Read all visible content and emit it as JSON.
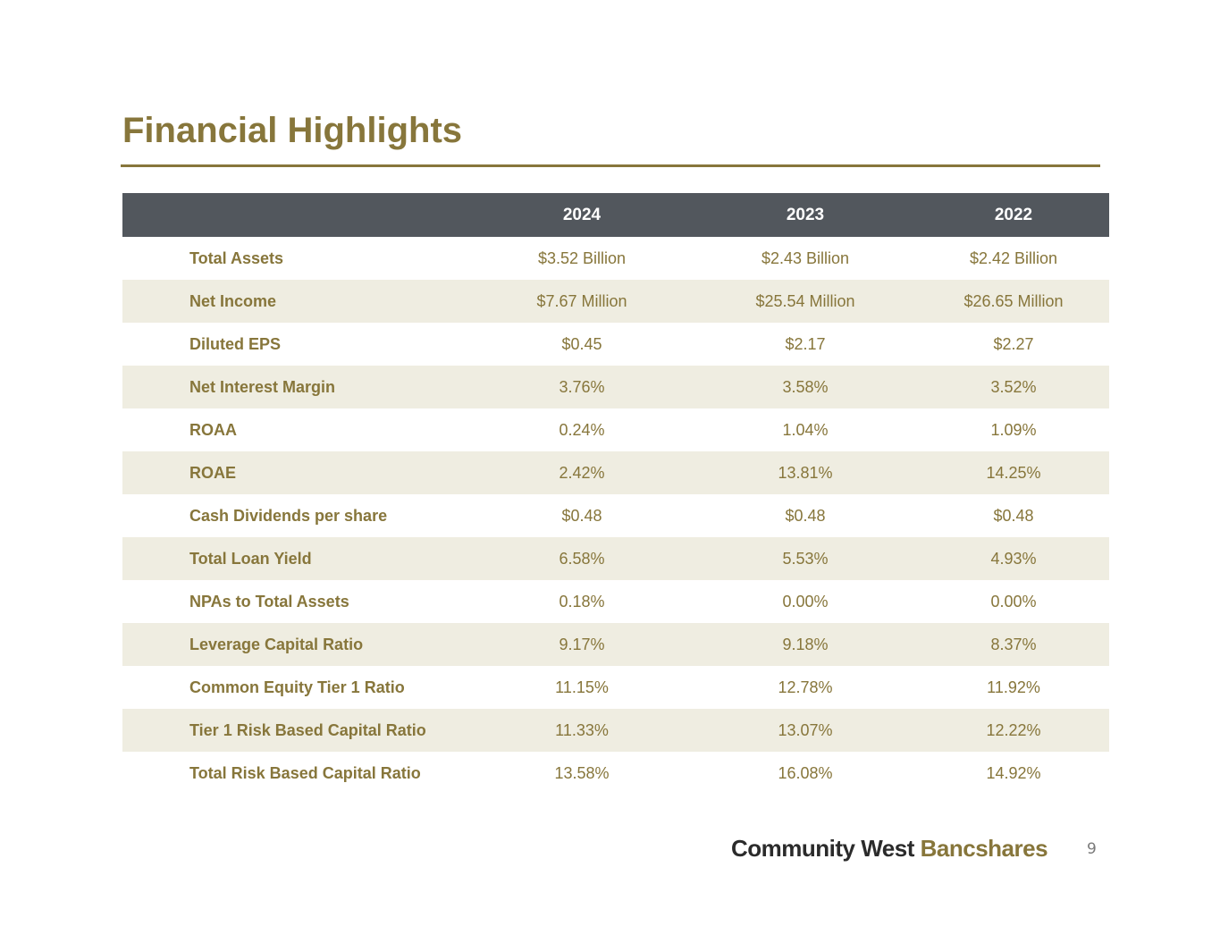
{
  "title": "Financial Highlights",
  "table": {
    "columns": [
      "",
      "2024",
      "2023",
      "2022"
    ],
    "rows": [
      {
        "label": "Total Assets",
        "values": [
          "$3.52 Billion",
          "$2.43 Billion",
          "$2.42 Billion"
        ]
      },
      {
        "label": "Net Income",
        "values": [
          "$7.67 Million",
          "$25.54 Million",
          "$26.65 Million"
        ]
      },
      {
        "label": "Diluted EPS",
        "values": [
          "$0.45",
          "$2.17",
          "$2.27"
        ]
      },
      {
        "label": "Net Interest Margin",
        "values": [
          "3.76%",
          "3.58%",
          "3.52%"
        ]
      },
      {
        "label": "ROAA",
        "values": [
          "0.24%",
          "1.04%",
          "1.09%"
        ]
      },
      {
        "label": "ROAE",
        "values": [
          "2.42%",
          "13.81%",
          "14.25%"
        ]
      },
      {
        "label": "Cash Dividends per share",
        "values": [
          "$0.48",
          "$0.48",
          "$0.48"
        ]
      },
      {
        "label": "Total Loan Yield",
        "values": [
          "6.58%",
          "5.53%",
          "4.93%"
        ]
      },
      {
        "label": "NPAs to Total Assets",
        "values": [
          "0.18%",
          "0.00%",
          "0.00%"
        ]
      },
      {
        "label": "Leverage Capital Ratio",
        "values": [
          "9.17%",
          "9.18%",
          "8.37%"
        ]
      },
      {
        "label": "Common Equity Tier 1 Ratio",
        "values": [
          "11.15%",
          "12.78%",
          "11.92%"
        ]
      },
      {
        "label": "Tier 1 Risk Based Capital Ratio",
        "values": [
          "11.33%",
          "13.07%",
          "12.22%"
        ]
      },
      {
        "label": "Total Risk Based Capital Ratio",
        "values": [
          "13.58%",
          "16.08%",
          "14.92%"
        ]
      }
    ]
  },
  "footer": {
    "logo_part1": "Community West",
    "logo_part2": "Bancshares",
    "page_number": "9"
  },
  "colors": {
    "accent_gold": "#87763b",
    "header_bg": "#52575d",
    "row_shade": "#efede1",
    "logo_dark": "#2b2b2b"
  }
}
